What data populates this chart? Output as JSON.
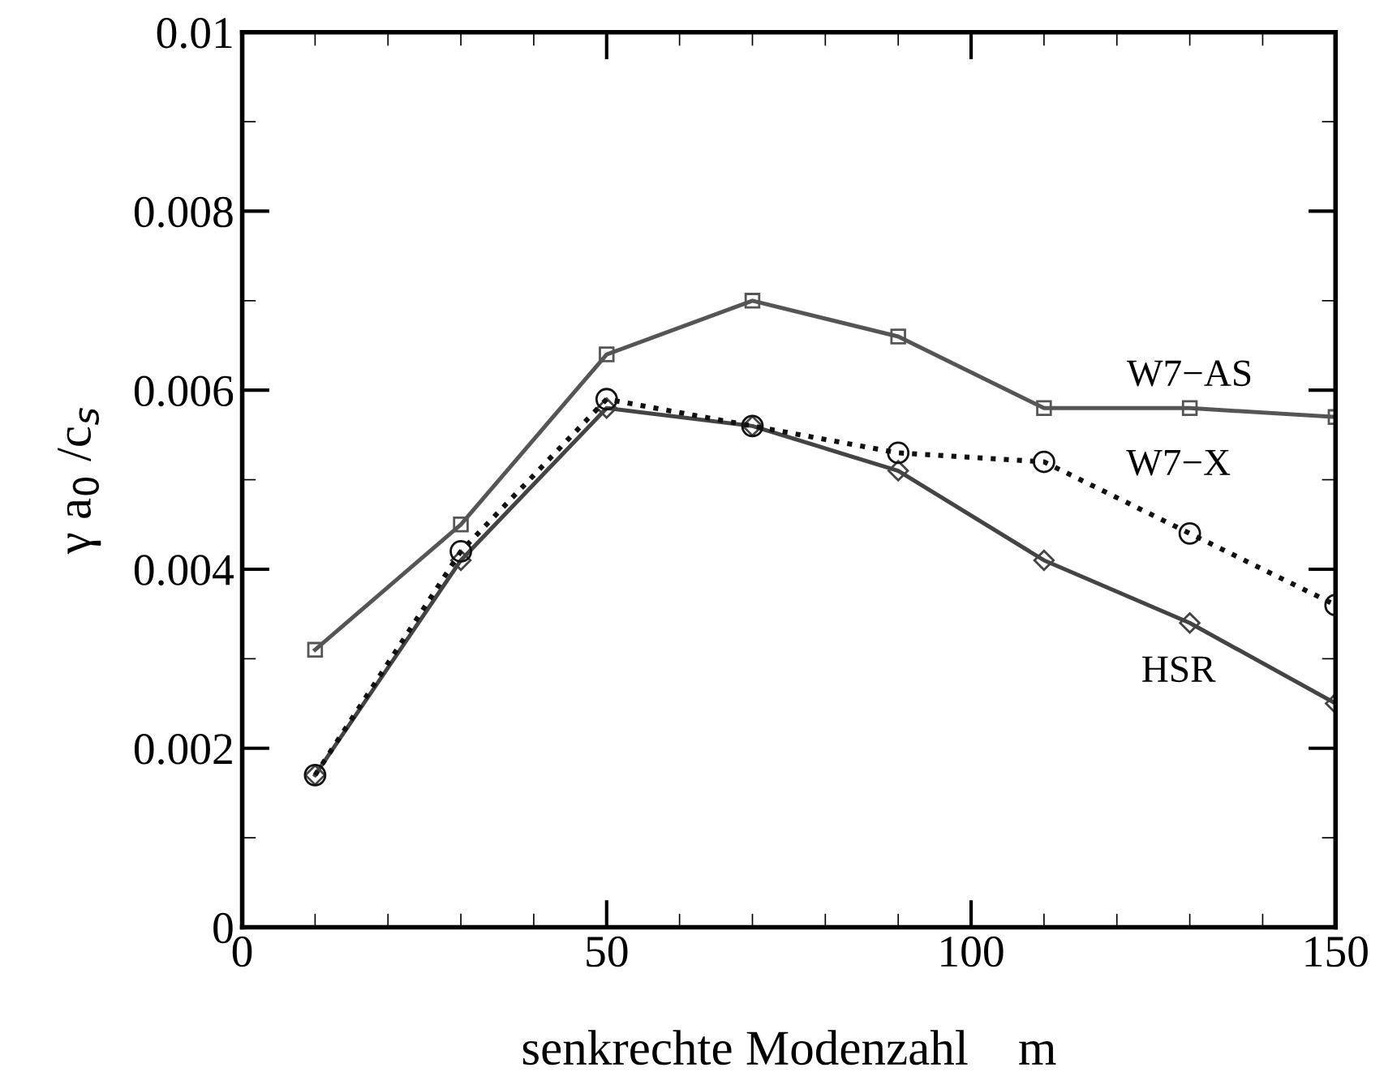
{
  "chart_data": {
    "type": "line",
    "xlabel": "senkrechte Modenzahl    m",
    "ylabel": "γ a$_{0}$ /c$_{s}$",
    "x": [
      10,
      30,
      50,
      70,
      90,
      110,
      130,
      150
    ],
    "series": [
      {
        "name": "W7−AS",
        "color": "#555555",
        "marker": "square",
        "line_style": "solid",
        "values": [
          0.0031,
          0.0045,
          0.0064,
          0.007,
          0.0066,
          0.0058,
          0.0058,
          0.0057
        ]
      },
      {
        "name": "W7−X",
        "color": "#111111",
        "marker": "circle",
        "line_style": "dotted",
        "values": [
          0.0017,
          0.0042,
          0.0059,
          0.0056,
          0.0053,
          0.0052,
          0.0044,
          0.0036
        ]
      },
      {
        "name": "HSR",
        "color": "#444444",
        "marker": "diamond",
        "line_style": "solid",
        "values": [
          0.0017,
          0.0041,
          0.0058,
          0.0056,
          0.0051,
          0.0041,
          0.0034,
          0.0025
        ]
      }
    ],
    "xlim": [
      0,
      150
    ],
    "xticks": [
      0,
      50,
      100,
      150
    ],
    "ylim": [
      0,
      0.01
    ],
    "yticks": [
      {
        "value": 0,
        "label": "0"
      },
      0.002,
      0.004,
      0.006,
      0.008,
      0.01
    ],
    "grid": false,
    "legend": false
  }
}
